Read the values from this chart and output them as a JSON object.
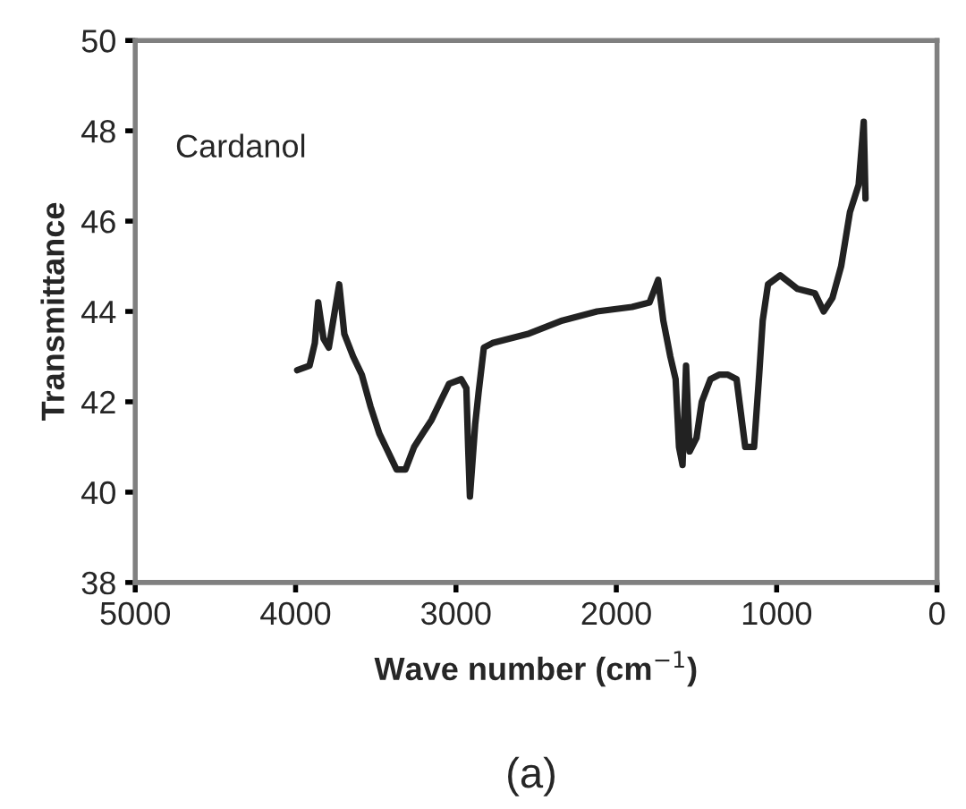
{
  "chart_data": {
    "type": "line",
    "xlabel": "Wave number (cm$^{−1}$)",
    "ylabel": "Transmittance",
    "annotations": [
      "Cardanol",
      "(a)"
    ],
    "xlim": [
      5000,
      0
    ],
    "xticks": [
      5000,
      4000,
      3000,
      2000,
      1000,
      0
    ],
    "ylim": [
      38,
      50
    ],
    "yticks": [
      38,
      40,
      42,
      44,
      46,
      48,
      50
    ],
    "grid": false,
    "legend": false,
    "marker": "none",
    "line_style": "solid",
    "series": [
      {
        "color": "#222222",
        "x": [
          3990,
          3913,
          3880,
          3859,
          3826,
          3793,
          3728,
          3696,
          3641,
          3587,
          3533,
          3478,
          3424,
          3370,
          3315,
          3261,
          3207,
          3152,
          3098,
          3043,
          2967,
          2935,
          2924,
          2913,
          2880,
          2859,
          2826,
          2772,
          2554,
          2337,
          2120,
          1902,
          1793,
          1739,
          1707,
          1663,
          1630,
          1609,
          1587,
          1565,
          1543,
          1500,
          1467,
          1413,
          1359,
          1304,
          1250,
          1196,
          1141,
          1109,
          1087,
          1054,
          978,
          870,
          761,
          707,
          652,
          598,
          543,
          489,
          457,
          446
        ],
        "values": [
          42.7,
          42.8,
          43.3,
          44.2,
          43.4,
          43.2,
          44.6,
          43.5,
          43.0,
          42.6,
          41.9,
          41.3,
          40.9,
          40.5,
          40.5,
          41.0,
          41.3,
          41.6,
          42.0,
          42.4,
          42.5,
          42.3,
          41.0,
          39.9,
          41.5,
          42.2,
          43.2,
          43.3,
          43.5,
          43.8,
          44.0,
          44.1,
          44.2,
          44.7,
          43.8,
          43.0,
          42.5,
          41.0,
          40.6,
          42.8,
          40.9,
          41.2,
          42.0,
          42.5,
          42.6,
          42.6,
          42.5,
          41.0,
          41.0,
          42.6,
          43.8,
          44.6,
          44.8,
          44.5,
          44.4,
          44.0,
          44.3,
          45.0,
          46.2,
          46.8,
          48.2,
          46.5
        ]
      }
    ]
  }
}
